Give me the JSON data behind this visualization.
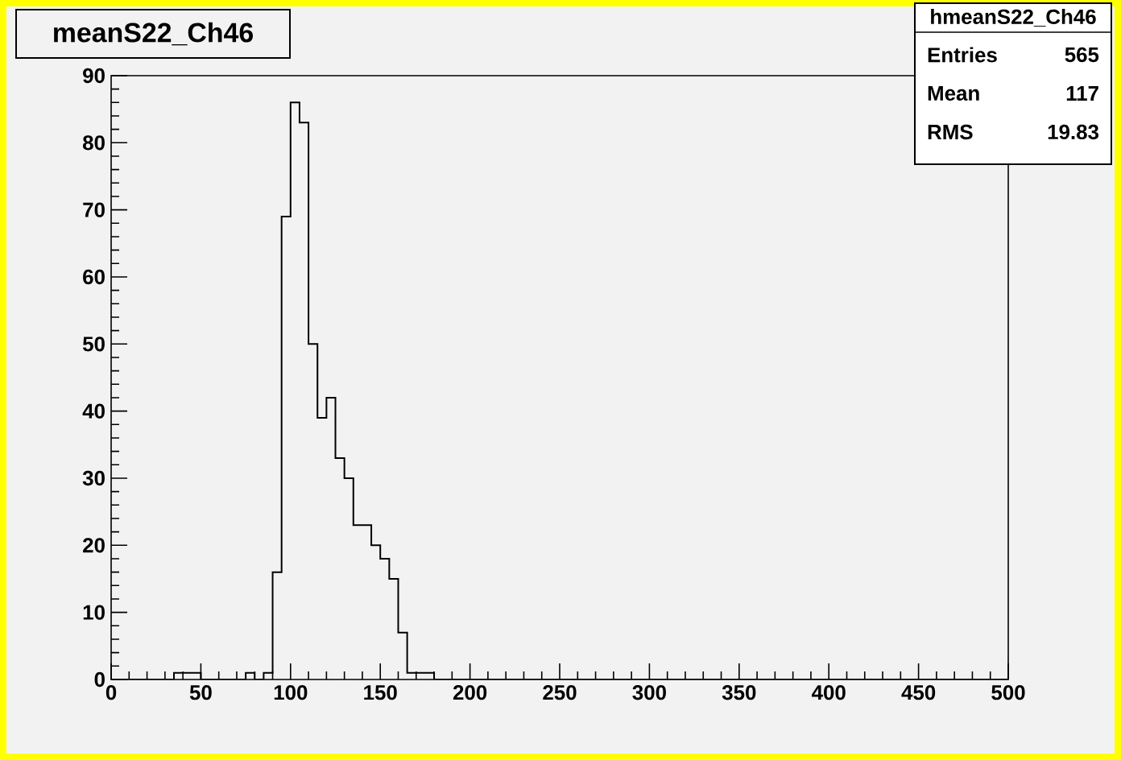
{
  "chart_data": {
    "type": "histogram",
    "title": "meanS22_Ch46",
    "bins": [
      0,
      5,
      10,
      15,
      20,
      25,
      30,
      35,
      40,
      45,
      50,
      55,
      60,
      65,
      70,
      75,
      80,
      85,
      90,
      95,
      100,
      105,
      110,
      115,
      120,
      125,
      130,
      135,
      140,
      145,
      150,
      155,
      160,
      165,
      170,
      175,
      180,
      185,
      190,
      195,
      200,
      205,
      210,
      215,
      220,
      225,
      230,
      235,
      240,
      245,
      250,
      255,
      260,
      265,
      270,
      275,
      280,
      285,
      290,
      295,
      300,
      305,
      310,
      315,
      320,
      325,
      330,
      335,
      340,
      345,
      350,
      355,
      360,
      365,
      370,
      375,
      380,
      385,
      390,
      395,
      400,
      405,
      410,
      415,
      420,
      425,
      430,
      435,
      440,
      445,
      450,
      455,
      460,
      465,
      470,
      475,
      480,
      485,
      490,
      495,
      500
    ],
    "values": [
      0,
      0,
      0,
      0,
      0,
      0,
      0,
      1,
      1,
      1,
      0,
      0,
      0,
      0,
      0,
      1,
      0,
      1,
      16,
      69,
      86,
      83,
      50,
      39,
      42,
      33,
      30,
      23,
      23,
      20,
      18,
      15,
      7,
      1,
      1,
      1,
      0,
      0,
      0,
      0,
      0,
      0,
      0,
      0,
      0,
      0,
      0,
      0,
      0,
      0,
      0,
      0,
      0,
      0,
      0,
      0,
      0,
      0,
      0,
      0,
      0,
      0,
      0,
      0,
      0,
      0,
      0,
      0,
      0,
      0,
      0,
      0,
      0,
      0,
      0,
      0,
      0,
      0,
      0,
      0,
      0,
      0,
      0,
      0,
      0,
      0,
      0,
      0,
      0,
      0,
      0,
      0,
      0,
      0,
      0,
      0,
      0,
      0,
      0,
      0
    ],
    "color": "#000000",
    "xlim": [
      0,
      500
    ],
    "ylim": [
      0,
      90
    ],
    "xticks": [
      0,
      50,
      100,
      150,
      200,
      250,
      300,
      350,
      400,
      450,
      500
    ],
    "yticks": [
      0,
      10,
      20,
      30,
      40,
      50,
      60,
      70,
      80,
      90
    ],
    "annotations": [
      "hmeanS22_Ch46",
      "Entries",
      "565",
      "Mean",
      "117",
      "RMS",
      "19.83"
    ]
  }
}
